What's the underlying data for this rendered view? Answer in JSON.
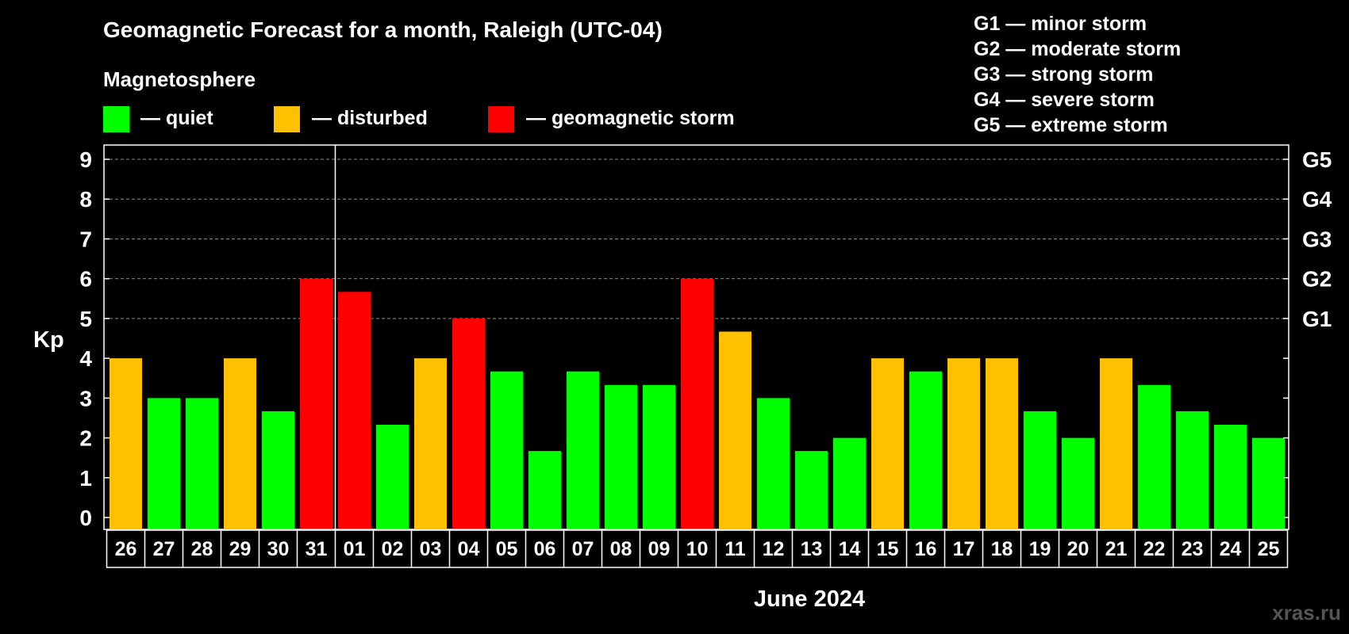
{
  "chart_data": {
    "type": "bar",
    "title": "Geomagnetic Forecast for a month, Raleigh (UTC-04)",
    "legend_title": "Magnetosphere",
    "legend": [
      {
        "label": "— quiet",
        "color": "#00ff00"
      },
      {
        "label": "— disturbed",
        "color": "#ffc000"
      },
      {
        "label": "— geomagnetic storm",
        "color": "#ff0000"
      }
    ],
    "storm_scale": [
      "G1 — minor storm",
      "G2 — moderate storm",
      "G3 — strong storm",
      "G4 — severe storm",
      "G5 — extreme storm"
    ],
    "ylabel": "Kp",
    "ylim": [
      0,
      9
    ],
    "yticks": [
      "0",
      "1",
      "2",
      "3",
      "4",
      "5",
      "6",
      "7",
      "8",
      "9"
    ],
    "right_axis": [
      {
        "label": "G1",
        "kp": 5
      },
      {
        "label": "G2",
        "kp": 6
      },
      {
        "label": "G3",
        "kp": 7
      },
      {
        "label": "G4",
        "kp": 8
      },
      {
        "label": "G5",
        "kp": 9
      }
    ],
    "grid": "dashed horizontal at Kp 5-9",
    "xlabel": "June 2024",
    "month_divider_after": "31",
    "categories": [
      "26",
      "27",
      "28",
      "29",
      "30",
      "31",
      "01",
      "02",
      "03",
      "04",
      "05",
      "06",
      "07",
      "08",
      "09",
      "10",
      "11",
      "12",
      "13",
      "14",
      "15",
      "16",
      "17",
      "18",
      "19",
      "20",
      "21",
      "22",
      "23",
      "24",
      "25"
    ],
    "values": [
      4,
      3,
      3,
      4,
      2.67,
      6,
      5.67,
      2.33,
      4,
      5,
      3.67,
      1.67,
      3.67,
      3.33,
      3.33,
      6,
      4.67,
      3,
      1.67,
      2,
      4,
      3.67,
      4,
      4,
      2.67,
      2,
      4,
      3.33,
      2.67,
      2.33,
      2
    ],
    "bar_status": [
      "disturbed",
      "quiet",
      "quiet",
      "disturbed",
      "quiet",
      "storm",
      "storm",
      "quiet",
      "disturbed",
      "storm",
      "quiet",
      "quiet",
      "quiet",
      "quiet",
      "quiet",
      "storm",
      "disturbed",
      "quiet",
      "quiet",
      "quiet",
      "disturbed",
      "quiet",
      "disturbed",
      "disturbed",
      "quiet",
      "quiet",
      "disturbed",
      "quiet",
      "quiet",
      "quiet",
      "quiet"
    ],
    "status_colors": {
      "quiet": "#00ff00",
      "disturbed": "#ffc000",
      "storm": "#ff0000"
    }
  },
  "watermark": "xras.ru"
}
